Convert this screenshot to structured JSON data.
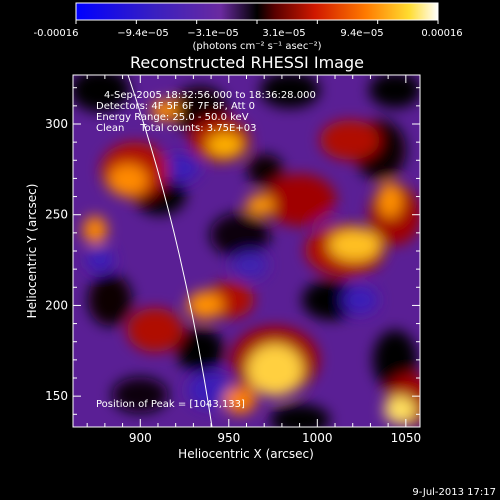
{
  "colorbar": {
    "ticks": [
      "-0.00016",
      "−9.4e−05",
      "−3.1e−05",
      "3.1e−05",
      "9.4e−05",
      "0.00016"
    ],
    "unit_label": "(photons cm⁻² s⁻¹ asec⁻²)"
  },
  "footer": {
    "date": "9-Jul-2013 17:17"
  },
  "chart_data": {
    "type": "heatmap",
    "title": "Reconstructed RHESSI Image",
    "xlabel": "Heliocentric X (arcsec)",
    "ylabel": "Heliocentric Y (arcsec)",
    "xlim": [
      862,
      1058
    ],
    "ylim": [
      133,
      327
    ],
    "xticks": [
      "900",
      "950",
      "1000",
      "1050"
    ],
    "yticks": [
      "150",
      "200",
      "250",
      "300"
    ],
    "xtick_values": [
      900,
      950,
      1000,
      1050
    ],
    "ytick_values": [
      150,
      200,
      250,
      300
    ],
    "value_range": [
      -0.00016,
      0.00016
    ],
    "colormap": "RHESSI red-temperature (blue/purple negative to orange/yellow positive)",
    "colors": [
      "#0000ff",
      "#5a1aa6",
      "#000000",
      "#c01000",
      "#ff7a00",
      "#ffff40",
      "#ffffff"
    ],
    "annotations": [
      "4-Sep-2005 18:32:56.000 to 18:36:28.000",
      "Detectors: 4F 5F 6F 7F 8F, Att 0",
      "Energy Range: 25.0 - 50.0 keV",
      "Clean     Total counts: 3.75E+03",
      "Position of Peak = [1043,133]"
    ],
    "peak": {
      "x": 1043,
      "y": 133
    }
  }
}
